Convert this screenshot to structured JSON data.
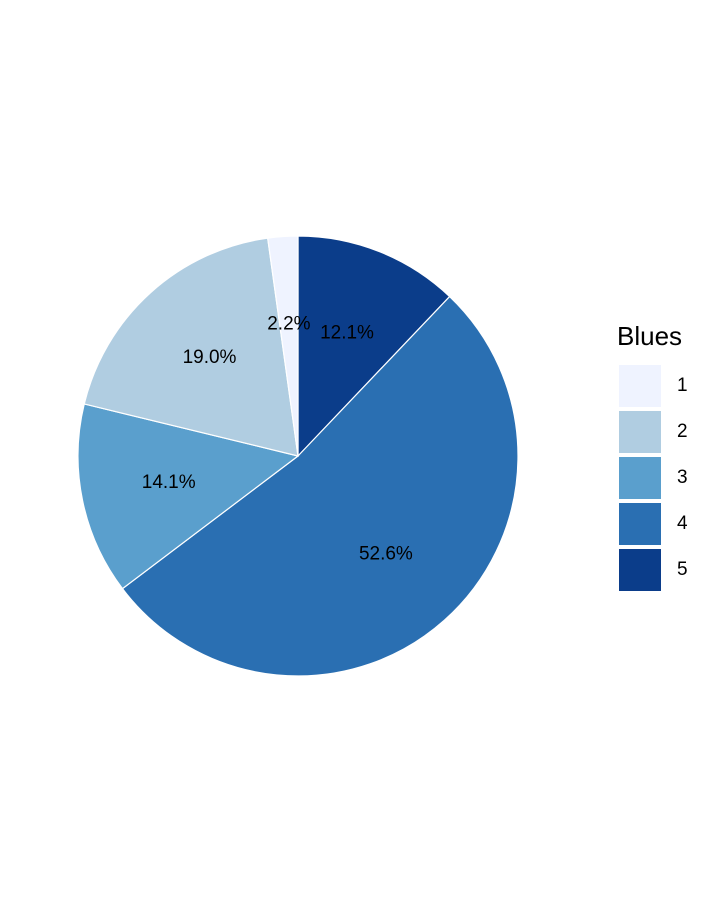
{
  "chart_data": {
    "type": "pie",
    "legend": {
      "title": "Blues",
      "position": "right"
    },
    "slices": [
      {
        "category": "1",
        "value": 2.2,
        "label": "2.2%",
        "color": "#eff3ff"
      },
      {
        "category": "2",
        "value": 19.0,
        "label": "19.0%",
        "color": "#b0cde1"
      },
      {
        "category": "3",
        "value": 14.1,
        "label": "14.1%",
        "color": "#5a9fcd"
      },
      {
        "category": "4",
        "value": 52.6,
        "label": "52.6%",
        "color": "#2a6fb2"
      },
      {
        "category": "5",
        "value": 12.1,
        "label": "12.1%",
        "color": "#0b3d8a"
      }
    ],
    "slice_order": [
      "5",
      "4",
      "3",
      "2",
      "1"
    ],
    "direction": "clockwise",
    "start": "top"
  }
}
